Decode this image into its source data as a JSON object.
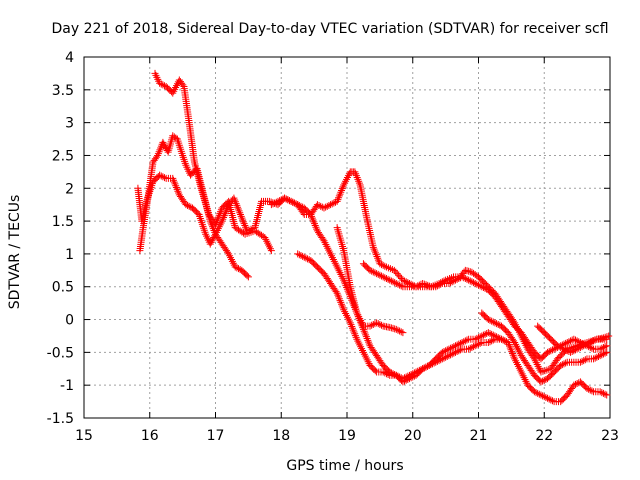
{
  "chart_data": {
    "type": "scatter",
    "title": "Day 221 of 2018, Sidereal Day-to-day VTEC variation (SDTVAR) for receiver scfl",
    "xlabel": "GPS time / hours",
    "ylabel": "SDTVAR / TECUs",
    "xlim": [
      15,
      23
    ],
    "ylim": [
      -1.5,
      4
    ],
    "xticks": [
      15,
      16,
      17,
      18,
      19,
      20,
      21,
      22,
      23
    ],
    "yticks": [
      -1.5,
      -1,
      -0.5,
      0,
      0.5,
      1,
      1.5,
      2,
      2.5,
      3,
      3.5,
      4
    ],
    "xtick_labels": [
      "15",
      "16",
      "17",
      "18",
      "19",
      "20",
      "21",
      "22",
      "23"
    ],
    "ytick_labels": [
      "-1.5",
      "-1",
      "-0.5",
      "0",
      "0.5",
      "1",
      "1.5",
      "2",
      "2.5",
      "3",
      "3.5",
      "4"
    ],
    "grid": true,
    "marker": "+",
    "color": "#ff0000",
    "series": [
      {
        "name": "s1",
        "points": [
          [
            16.08,
            3.75
          ],
          [
            16.15,
            3.6
          ],
          [
            16.25,
            3.55
          ],
          [
            16.35,
            3.45
          ],
          [
            16.45,
            3.65
          ],
          [
            16.52,
            3.55
          ],
          [
            16.6,
            3.0
          ],
          [
            16.68,
            2.4
          ],
          [
            16.78,
            2.0
          ],
          [
            16.9,
            1.6
          ],
          [
            17.0,
            1.45
          ],
          [
            17.1,
            1.7
          ],
          [
            17.2,
            1.8
          ],
          [
            17.3,
            1.4
          ],
          [
            17.45,
            1.3
          ],
          [
            17.6,
            1.35
          ],
          [
            17.75,
            1.25
          ],
          [
            17.85,
            1.05
          ]
        ]
      },
      {
        "name": "s2",
        "points": [
          [
            15.85,
            1.05
          ],
          [
            15.9,
            1.4
          ],
          [
            15.98,
            1.9
          ],
          [
            16.05,
            2.4
          ],
          [
            16.12,
            2.5
          ],
          [
            16.2,
            2.7
          ],
          [
            16.28,
            2.55
          ],
          [
            16.35,
            2.8
          ],
          [
            16.42,
            2.75
          ],
          [
            16.5,
            2.5
          ],
          [
            16.55,
            2.35
          ],
          [
            16.62,
            2.2
          ],
          [
            16.72,
            2.3
          ],
          [
            16.82,
            1.9
          ],
          [
            16.92,
            1.5
          ],
          [
            17.0,
            1.3
          ],
          [
            17.1,
            1.15
          ],
          [
            17.2,
            1.0
          ],
          [
            17.3,
            0.8
          ],
          [
            17.4,
            0.75
          ],
          [
            17.5,
            0.65
          ]
        ]
      },
      {
        "name": "s3",
        "points": [
          [
            15.82,
            2.0
          ],
          [
            15.88,
            1.5
          ],
          [
            15.95,
            1.8
          ],
          [
            16.05,
            2.1
          ],
          [
            16.15,
            2.2
          ],
          [
            16.25,
            2.15
          ],
          [
            16.35,
            2.15
          ],
          [
            16.45,
            1.9
          ],
          [
            16.55,
            1.75
          ],
          [
            16.65,
            1.7
          ],
          [
            16.75,
            1.6
          ],
          [
            16.85,
            1.3
          ],
          [
            16.92,
            1.15
          ],
          [
            17.0,
            1.3
          ],
          [
            17.1,
            1.5
          ],
          [
            17.2,
            1.75
          ],
          [
            17.28,
            1.85
          ],
          [
            17.38,
            1.6
          ],
          [
            17.48,
            1.35
          ],
          [
            17.6,
            1.4
          ],
          [
            17.7,
            1.8
          ],
          [
            17.82,
            1.8
          ],
          [
            17.95,
            1.75
          ],
          [
            18.05,
            1.85
          ],
          [
            18.15,
            1.8
          ],
          [
            18.25,
            1.75
          ],
          [
            18.35,
            1.6
          ],
          [
            18.45,
            1.6
          ],
          [
            18.55,
            1.75
          ],
          [
            18.65,
            1.7
          ],
          [
            18.75,
            1.75
          ],
          [
            18.85,
            1.8
          ],
          [
            18.95,
            2.05
          ],
          [
            19.05,
            2.25
          ],
          [
            19.12,
            2.25
          ],
          [
            19.2,
            2.05
          ],
          [
            19.3,
            1.55
          ],
          [
            19.4,
            1.1
          ],
          [
            19.5,
            0.85
          ],
          [
            19.6,
            0.8
          ],
          [
            19.72,
            0.75
          ],
          [
            19.85,
            0.6
          ],
          [
            19.95,
            0.55
          ],
          [
            20.05,
            0.5
          ],
          [
            20.15,
            0.55
          ],
          [
            20.28,
            0.5
          ],
          [
            20.4,
            0.55
          ],
          [
            20.5,
            0.6
          ],
          [
            20.62,
            0.65
          ],
          [
            20.72,
            0.65
          ],
          [
            20.8,
            0.75
          ],
          [
            20.9,
            0.72
          ],
          [
            21.0,
            0.65
          ],
          [
            21.1,
            0.55
          ],
          [
            21.25,
            0.4
          ],
          [
            21.35,
            0.25
          ],
          [
            21.45,
            0.1
          ],
          [
            21.55,
            -0.05
          ],
          [
            21.65,
            -0.25
          ],
          [
            21.75,
            -0.45
          ],
          [
            21.85,
            -0.6
          ],
          [
            21.95,
            -0.8
          ],
          [
            22.1,
            -0.75
          ],
          [
            22.2,
            -0.6
          ],
          [
            22.35,
            -0.45
          ],
          [
            22.5,
            -0.4
          ],
          [
            22.65,
            -0.35
          ],
          [
            22.8,
            -0.3
          ],
          [
            22.95,
            -0.3
          ]
        ]
      },
      {
        "name": "s4",
        "points": [
          [
            17.85,
            1.75
          ],
          [
            17.95,
            1.8
          ],
          [
            18.05,
            1.85
          ],
          [
            18.15,
            1.8
          ],
          [
            18.25,
            1.75
          ],
          [
            18.35,
            1.7
          ],
          [
            18.45,
            1.6
          ],
          [
            18.55,
            1.35
          ],
          [
            18.65,
            1.2
          ],
          [
            18.75,
            1.0
          ],
          [
            18.85,
            0.8
          ],
          [
            18.95,
            0.6
          ],
          [
            19.05,
            0.35
          ],
          [
            19.15,
            0.1
          ],
          [
            19.25,
            -0.15
          ],
          [
            19.35,
            -0.4
          ],
          [
            19.45,
            -0.55
          ],
          [
            19.55,
            -0.7
          ],
          [
            19.65,
            -0.8
          ],
          [
            19.75,
            -0.85
          ],
          [
            19.85,
            -0.95
          ],
          [
            19.95,
            -0.9
          ],
          [
            20.05,
            -0.85
          ],
          [
            20.15,
            -0.75
          ],
          [
            20.25,
            -0.7
          ],
          [
            20.35,
            -0.6
          ],
          [
            20.45,
            -0.5
          ],
          [
            20.55,
            -0.45
          ],
          [
            20.65,
            -0.4
          ],
          [
            20.75,
            -0.35
          ],
          [
            20.85,
            -0.3
          ],
          [
            20.95,
            -0.3
          ],
          [
            21.05,
            -0.25
          ],
          [
            21.15,
            -0.2
          ],
          [
            21.25,
            -0.25
          ],
          [
            21.35,
            -0.3
          ],
          [
            21.45,
            -0.35
          ],
          [
            21.55,
            -0.6
          ],
          [
            21.65,
            -0.8
          ],
          [
            21.75,
            -1.0
          ],
          [
            21.85,
            -1.1
          ],
          [
            21.95,
            -1.15
          ],
          [
            22.05,
            -1.2
          ],
          [
            22.15,
            -1.25
          ],
          [
            22.25,
            -1.25
          ],
          [
            22.35,
            -1.15
          ],
          [
            22.45,
            -1.0
          ],
          [
            22.55,
            -0.95
          ],
          [
            22.65,
            -1.05
          ],
          [
            22.75,
            -1.1
          ],
          [
            22.85,
            -1.1
          ],
          [
            22.95,
            -1.15
          ]
        ]
      },
      {
        "name": "s5",
        "points": [
          [
            18.25,
            1.0
          ],
          [
            18.35,
            0.95
          ],
          [
            18.45,
            0.9
          ],
          [
            18.55,
            0.8
          ],
          [
            18.65,
            0.7
          ],
          [
            18.75,
            0.55
          ],
          [
            18.85,
            0.4
          ],
          [
            18.95,
            0.15
          ],
          [
            19.05,
            -0.05
          ],
          [
            19.15,
            -0.3
          ],
          [
            19.25,
            -0.5
          ],
          [
            19.35,
            -0.7
          ],
          [
            19.45,
            -0.8
          ],
          [
            19.55,
            -0.8
          ],
          [
            19.65,
            -0.85
          ],
          [
            19.75,
            -0.85
          ],
          [
            19.85,
            -0.9
          ],
          [
            19.95,
            -0.85
          ],
          [
            20.05,
            -0.8
          ],
          [
            20.15,
            -0.75
          ],
          [
            20.25,
            -0.7
          ],
          [
            20.35,
            -0.65
          ],
          [
            20.45,
            -0.6
          ],
          [
            20.55,
            -0.55
          ],
          [
            20.65,
            -0.5
          ],
          [
            20.75,
            -0.45
          ],
          [
            20.85,
            -0.45
          ],
          [
            20.95,
            -0.4
          ],
          [
            21.05,
            -0.35
          ],
          [
            21.15,
            -0.35
          ],
          [
            21.25,
            -0.3
          ],
          [
            21.35,
            -0.3
          ],
          [
            21.45,
            -0.35
          ]
        ]
      },
      {
        "name": "s6",
        "points": [
          [
            18.85,
            1.4
          ],
          [
            18.95,
            1.05
          ],
          [
            19.05,
            0.5
          ],
          [
            19.15,
            0.1
          ],
          [
            19.25,
            -0.1
          ],
          [
            19.35,
            -0.1
          ],
          [
            19.45,
            -0.05
          ],
          [
            19.55,
            -0.1
          ],
          [
            19.65,
            -0.12
          ],
          [
            19.75,
            -0.15
          ],
          [
            19.85,
            -0.2
          ]
        ]
      },
      {
        "name": "s7",
        "points": [
          [
            19.25,
            0.85
          ],
          [
            19.35,
            0.75
          ],
          [
            19.45,
            0.7
          ],
          [
            19.55,
            0.65
          ],
          [
            19.65,
            0.6
          ],
          [
            19.75,
            0.55
          ],
          [
            19.85,
            0.5
          ],
          [
            19.95,
            0.5
          ],
          [
            20.05,
            0.5
          ],
          [
            20.15,
            0.5
          ],
          [
            20.25,
            0.5
          ],
          [
            20.35,
            0.5
          ],
          [
            20.45,
            0.55
          ],
          [
            20.55,
            0.55
          ],
          [
            20.65,
            0.6
          ],
          [
            20.75,
            0.65
          ],
          [
            20.85,
            0.6
          ],
          [
            20.95,
            0.55
          ],
          [
            21.05,
            0.5
          ],
          [
            21.15,
            0.45
          ],
          [
            21.25,
            0.35
          ],
          [
            21.35,
            0.2
          ],
          [
            21.45,
            0.05
          ],
          [
            21.55,
            -0.1
          ],
          [
            21.65,
            -0.2
          ],
          [
            21.75,
            -0.35
          ],
          [
            21.85,
            -0.5
          ],
          [
            21.95,
            -0.6
          ],
          [
            22.05,
            -0.5
          ],
          [
            22.15,
            -0.45
          ],
          [
            22.25,
            -0.4
          ],
          [
            22.35,
            -0.35
          ],
          [
            22.45,
            -0.3
          ],
          [
            22.55,
            -0.35
          ],
          [
            22.65,
            -0.4
          ],
          [
            22.75,
            -0.45
          ],
          [
            22.85,
            -0.45
          ],
          [
            22.95,
            -0.4
          ]
        ]
      },
      {
        "name": "s8",
        "points": [
          [
            21.05,
            0.1
          ],
          [
            21.15,
            0.0
          ],
          [
            21.25,
            -0.05
          ],
          [
            21.35,
            -0.1
          ],
          [
            21.45,
            -0.2
          ],
          [
            21.55,
            -0.35
          ],
          [
            21.65,
            -0.55
          ],
          [
            21.75,
            -0.7
          ],
          [
            21.85,
            -0.85
          ],
          [
            21.95,
            -0.95
          ],
          [
            22.05,
            -0.9
          ],
          [
            22.15,
            -0.8
          ],
          [
            22.25,
            -0.7
          ],
          [
            22.35,
            -0.65
          ],
          [
            22.45,
            -0.65
          ],
          [
            22.55,
            -0.65
          ],
          [
            22.65,
            -0.6
          ],
          [
            22.75,
            -0.6
          ],
          [
            22.85,
            -0.55
          ],
          [
            22.95,
            -0.5
          ]
        ]
      },
      {
        "name": "s9",
        "points": [
          [
            21.9,
            -0.1
          ],
          [
            22.0,
            -0.2
          ],
          [
            22.1,
            -0.3
          ],
          [
            22.2,
            -0.4
          ],
          [
            22.3,
            -0.45
          ],
          [
            22.4,
            -0.5
          ],
          [
            22.5,
            -0.45
          ],
          [
            22.6,
            -0.4
          ],
          [
            22.7,
            -0.35
          ],
          [
            22.8,
            -0.3
          ],
          [
            22.9,
            -0.28
          ],
          [
            22.98,
            -0.25
          ]
        ]
      }
    ]
  }
}
